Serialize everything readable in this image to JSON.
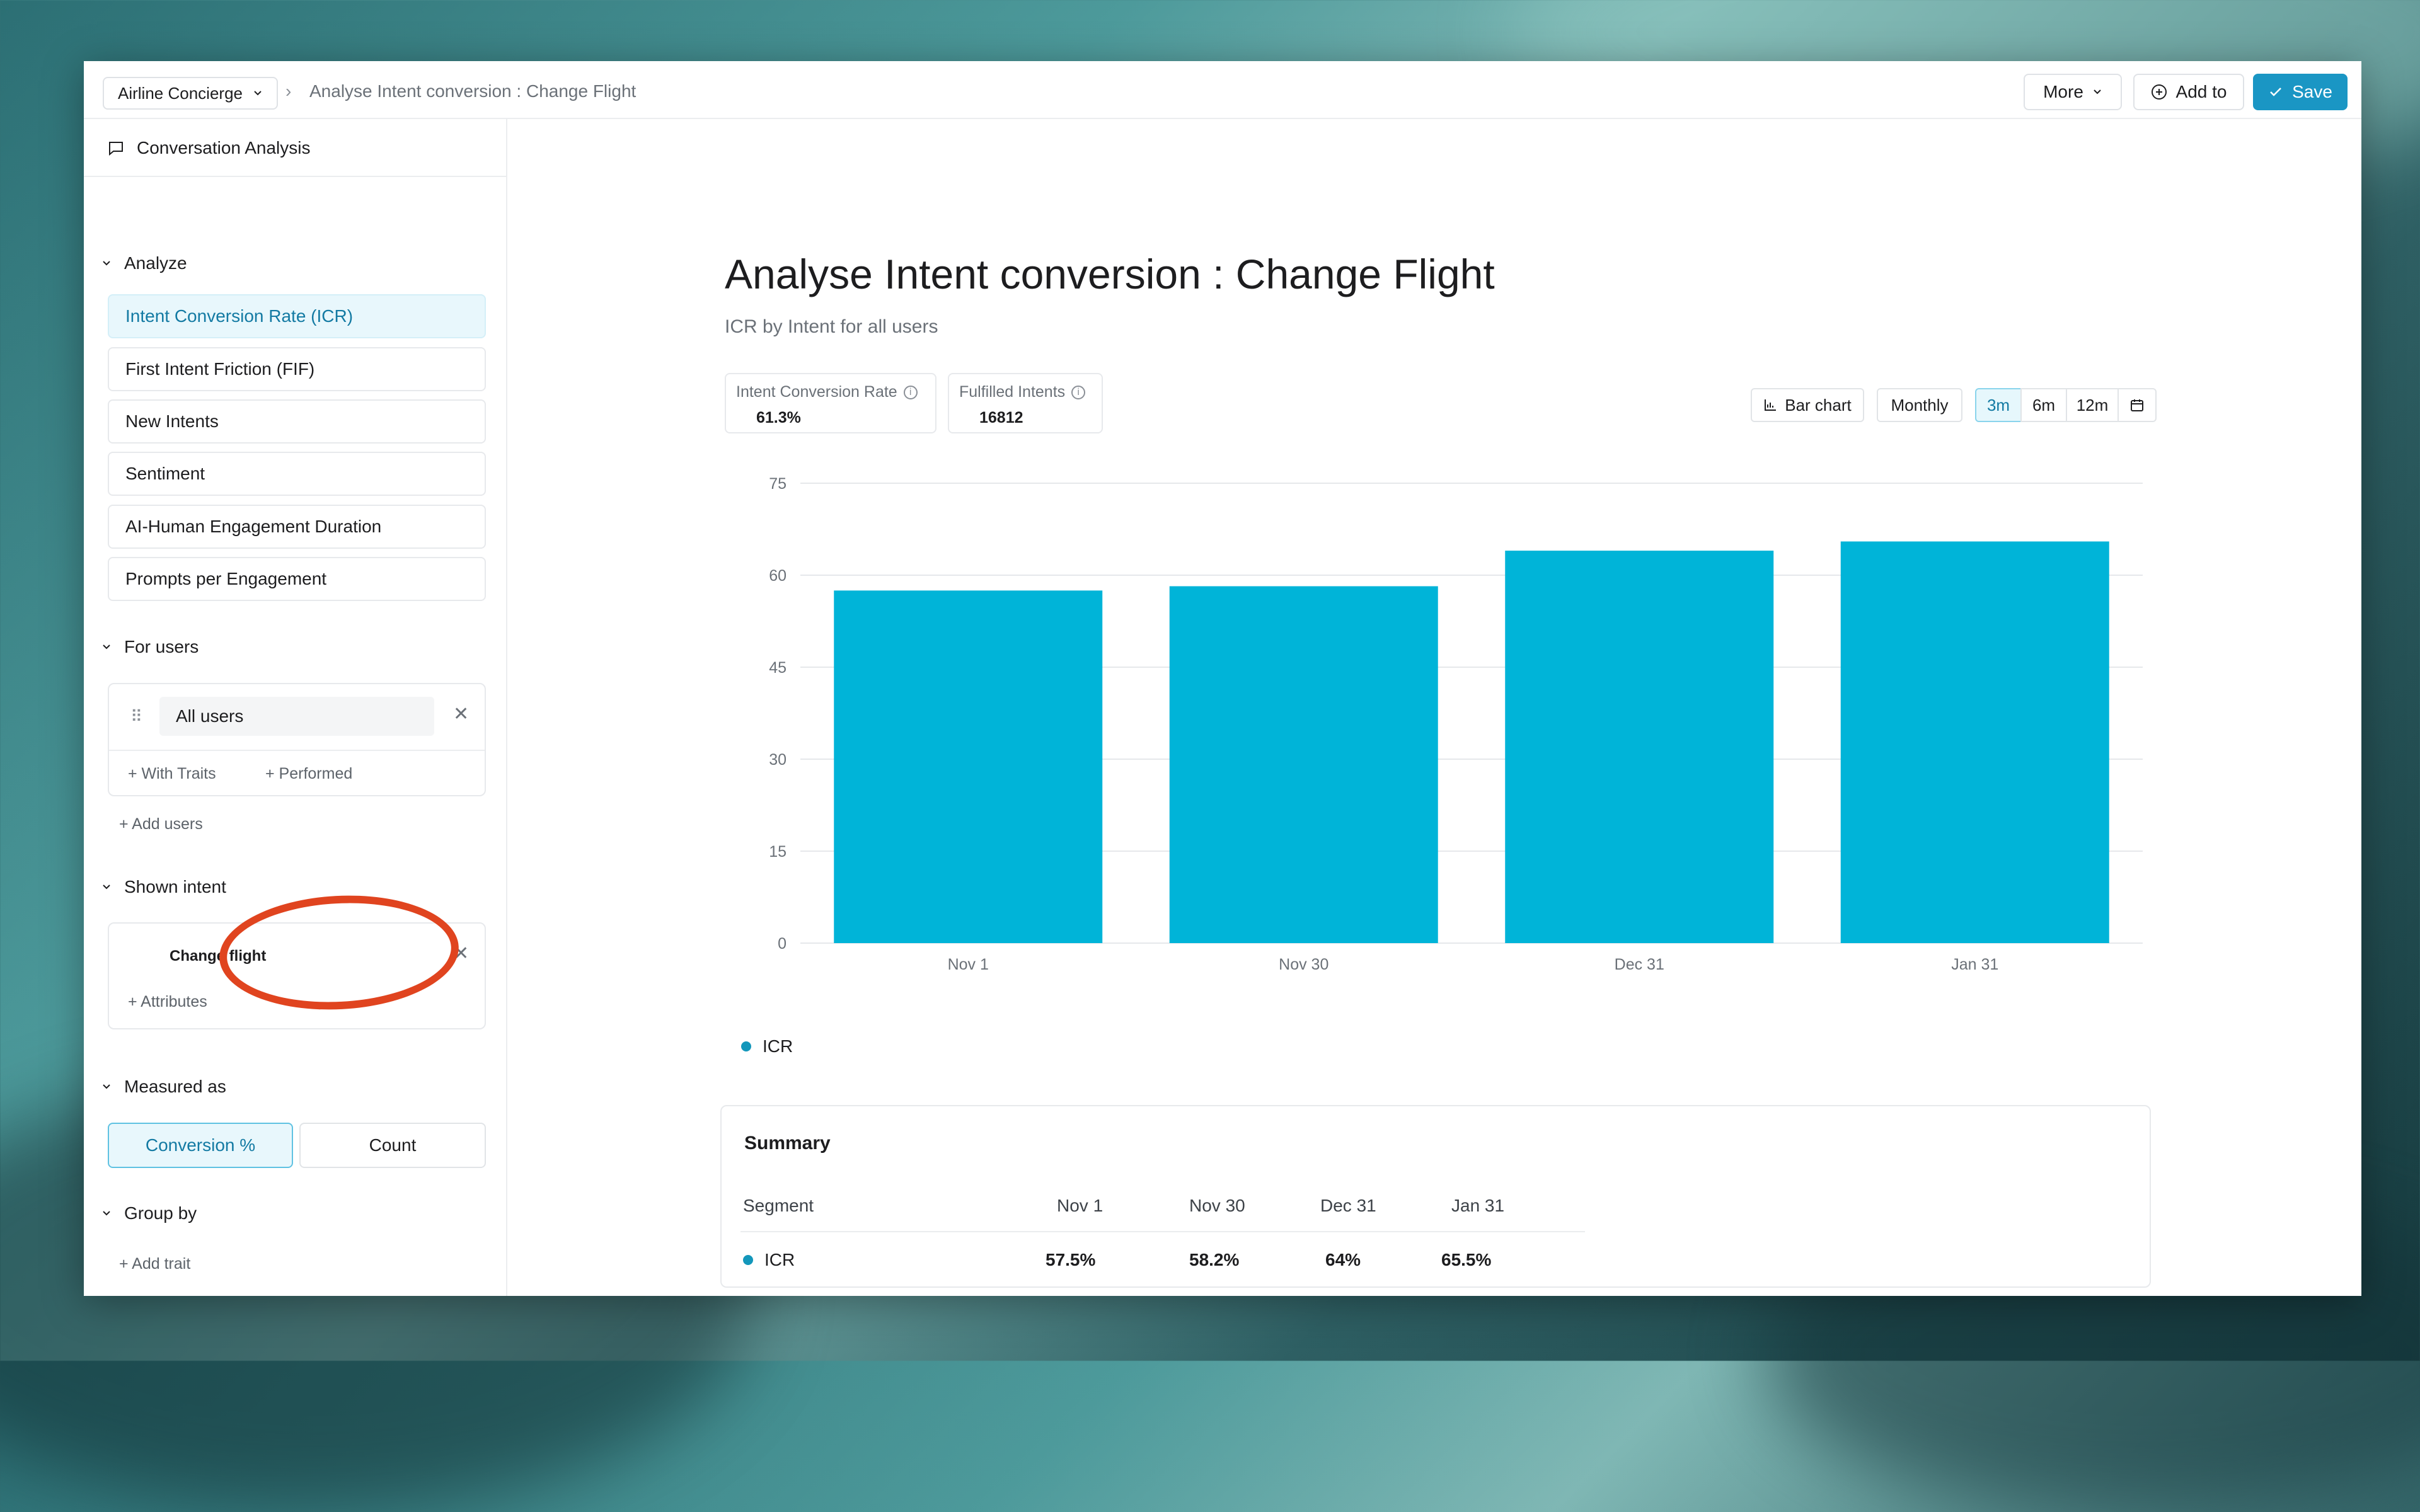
{
  "header": {
    "app_name": "Airline Concierge",
    "breadcrumb": "Analyse Intent conversion : Change Flight",
    "more_label": "More",
    "add_to_label": "Add to",
    "save_label": "Save"
  },
  "sidebar": {
    "title": "Conversation Analysis",
    "analyze_label": "Analyze",
    "metrics": [
      {
        "label": "Intent Conversion Rate (ICR)",
        "active": true
      },
      {
        "label": "First Intent Friction (FIF)",
        "active": false
      },
      {
        "label": "New Intents",
        "active": false
      },
      {
        "label": "Sentiment",
        "active": false
      },
      {
        "label": "AI-Human Engagement Duration",
        "active": false
      },
      {
        "label": "Prompts per Engagement",
        "active": false
      }
    ],
    "for_users_label": "For users",
    "user_chip": "All users",
    "with_traits": "With Traits",
    "performed": "Performed",
    "add_users": "Add users",
    "shown_intent_label": "Shown intent",
    "intent_chip": "Change flight",
    "attributes": "Attributes",
    "measured_as_label": "Measured as",
    "measure_options": [
      "Conversion %",
      "Count"
    ],
    "measure_selected": "Conversion %",
    "group_by_label": "Group by",
    "add_trait": "Add trait"
  },
  "main": {
    "title": "Analyse Intent conversion : Change Flight",
    "subtitle": "ICR by Intent for all users",
    "stats": [
      {
        "label": "Intent Conversion Rate",
        "value": "61.3%"
      },
      {
        "label": "Fulfilled Intents",
        "value": "16812"
      }
    ],
    "controls": {
      "chart_type": "Bar chart",
      "interval": "Monthly",
      "ranges": [
        "3m",
        "6m",
        "12m"
      ],
      "selected_range": "3m"
    }
  },
  "chart_data": {
    "type": "bar",
    "categories": [
      "Nov 1",
      "Nov 30",
      "Dec 31",
      "Jan 31"
    ],
    "series": [
      {
        "name": "ICR",
        "values": [
          57.5,
          58.2,
          64,
          65.5
        ],
        "color": "#00b4d8"
      }
    ],
    "yticks": [
      0,
      15,
      30,
      45,
      60,
      75
    ],
    "ylim": [
      0,
      75
    ],
    "legend": "bottom-left",
    "grid": true
  },
  "summary": {
    "title": "Summary",
    "segment_header": "Segment",
    "columns": [
      "Nov 1",
      "Nov 30",
      "Dec 31",
      "Jan 31"
    ],
    "rows": [
      {
        "segment": "ICR",
        "values": [
          "57.5%",
          "58.2%",
          "64%",
          "65.5%"
        ]
      }
    ]
  },
  "colors": {
    "accent": "#1a96c4",
    "bar": "#00b4d8",
    "annotation": "#e0441f"
  }
}
